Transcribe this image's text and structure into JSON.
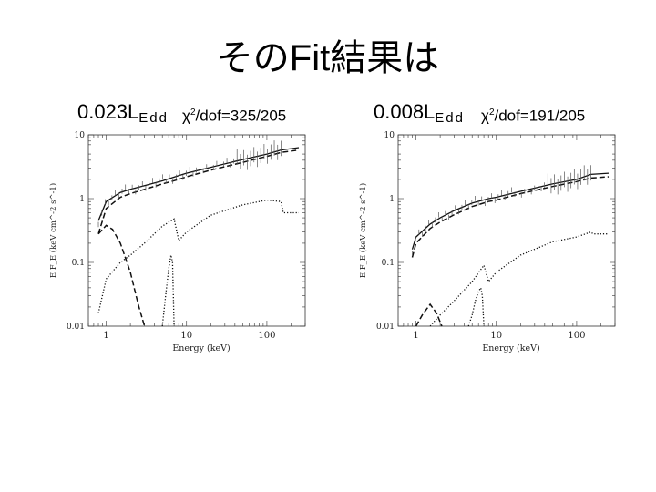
{
  "slide": {
    "title": "そのFit結果は"
  },
  "panels": [
    {
      "lum_value": "0.023L",
      "lum_sub": "Edd",
      "chi_prefix": "χ",
      "chi_sup": "2",
      "chi_rest": "/dof=325/205"
    },
    {
      "lum_value": "0.008L",
      "lum_sub": "Edd",
      "chi_prefix": "χ",
      "chi_sup": "2",
      "chi_rest": "/dof=191/205"
    }
  ],
  "chart_data": [
    {
      "type": "line",
      "xlabel": "Energy (keV)",
      "ylabel": "E F_E (keV cm^-2 s^-1)",
      "xscale": "log",
      "yscale": "log",
      "xlim": [
        0.6,
        300
      ],
      "ylim": [
        0.01,
        10
      ],
      "xticks": [
        "1",
        "10",
        "100"
      ],
      "yticks": [
        "0.01",
        "0.1",
        "1",
        "10"
      ],
      "series": [
        {
          "style": "solid",
          "x": [
            0.8,
            1,
            1.5,
            2,
            3,
            5,
            8,
            10,
            20,
            50,
            100,
            150,
            250
          ],
          "y": [
            0.45,
            0.9,
            1.25,
            1.4,
            1.6,
            1.9,
            2.3,
            2.5,
            3.1,
            4.1,
            5.0,
            5.8,
            6.3
          ]
        },
        {
          "style": "dashed",
          "x": [
            0.8,
            1,
            1.5,
            2,
            3,
            5,
            8,
            10,
            20,
            50,
            100,
            150,
            250
          ],
          "y": [
            0.28,
            0.7,
            1.05,
            1.2,
            1.4,
            1.7,
            2.0,
            2.2,
            2.8,
            3.7,
            4.6,
            5.3,
            5.8
          ]
        },
        {
          "style": "dashed",
          "x": [
            0.8,
            1,
            1.2,
            1.5,
            2,
            2.5,
            3
          ],
          "y": [
            0.28,
            0.38,
            0.33,
            0.2,
            0.07,
            0.022,
            0.01
          ]
        },
        {
          "style": "dotted",
          "x": [
            0.8,
            1,
            1.5,
            2,
            3,
            5,
            7,
            8,
            10,
            20,
            50,
            100,
            150,
            160,
            250
          ],
          "y": [
            0.016,
            0.055,
            0.1,
            0.13,
            0.2,
            0.37,
            0.48,
            0.22,
            0.3,
            0.55,
            0.8,
            0.95,
            0.9,
            0.6,
            0.6
          ]
        },
        {
          "style": "dotted",
          "x": [
            5,
            5.5,
            6,
            6.4,
            6.7,
            7
          ],
          "y": [
            0.01,
            0.03,
            0.08,
            0.13,
            0.1,
            0.01
          ]
        }
      ]
    },
    {
      "type": "line",
      "xlabel": "Energy (keV)",
      "ylabel": "E F_E (keV cm^-2 s^-1)",
      "xscale": "log",
      "yscale": "log",
      "xlim": [
        0.6,
        300
      ],
      "ylim": [
        0.01,
        10
      ],
      "xticks": [
        "1",
        "10",
        "100"
      ],
      "yticks": [
        "0.01",
        "0.1",
        "1",
        "10"
      ],
      "series": [
        {
          "style": "solid",
          "x": [
            0.9,
            1,
            1.5,
            2,
            3,
            5,
            8,
            10,
            20,
            50,
            100,
            150,
            250
          ],
          "y": [
            0.16,
            0.25,
            0.4,
            0.5,
            0.65,
            0.85,
            1.0,
            1.05,
            1.3,
            1.7,
            2.0,
            2.4,
            2.5
          ]
        },
        {
          "style": "dashed",
          "x": [
            0.9,
            1,
            1.5,
            2,
            3,
            5,
            8,
            10,
            20,
            50,
            100,
            150,
            250
          ],
          "y": [
            0.12,
            0.2,
            0.34,
            0.43,
            0.56,
            0.75,
            0.9,
            0.95,
            1.2,
            1.55,
            1.85,
            2.1,
            2.2
          ]
        },
        {
          "style": "dashed",
          "x": [
            1,
            1.2,
            1.5,
            1.8,
            2.1
          ],
          "y": [
            0.01,
            0.015,
            0.022,
            0.016,
            0.01
          ]
        },
        {
          "style": "dotted",
          "x": [
            1.5,
            2,
            3,
            5,
            7,
            8,
            10,
            20,
            50,
            100,
            150,
            160,
            250
          ],
          "y": [
            0.01,
            0.015,
            0.025,
            0.05,
            0.09,
            0.05,
            0.07,
            0.13,
            0.21,
            0.25,
            0.3,
            0.28,
            0.28
          ]
        },
        {
          "style": "dotted",
          "x": [
            4.5,
            5,
            5.5,
            6,
            6.4,
            6.7,
            7
          ],
          "y": [
            0.01,
            0.015,
            0.025,
            0.035,
            0.04,
            0.03,
            0.01
          ]
        }
      ]
    }
  ]
}
